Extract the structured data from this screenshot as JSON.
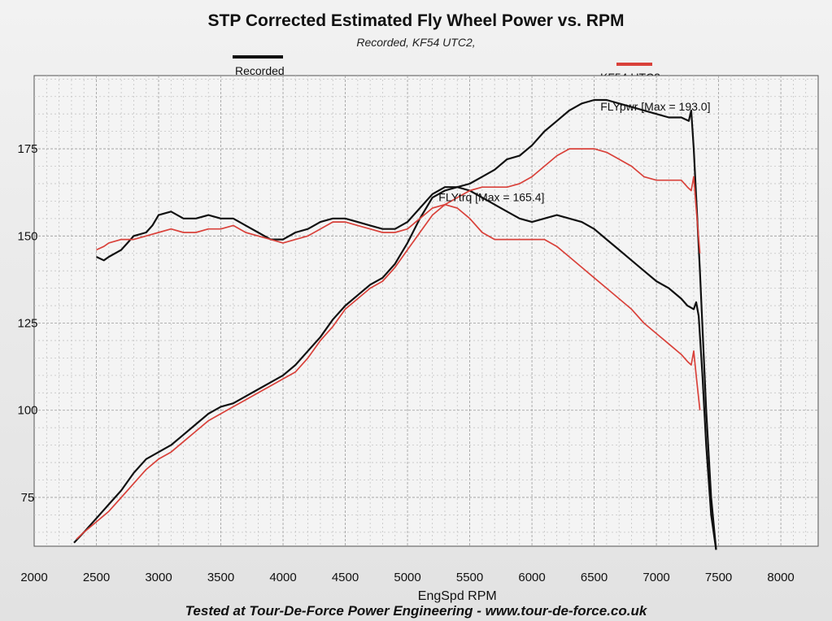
{
  "header": {
    "title": "STP Corrected Estimated Fly Wheel Power vs. RPM",
    "subtitle": "Recorded, KF54 UTC2,"
  },
  "legend": [
    {
      "label": "Recorded",
      "color": "#111111"
    },
    {
      "label": "KF54 UTC2",
      "color": "#d9413a"
    }
  ],
  "footer": "Tested at Tour-De-Force Power Engineering - www.tour-de-force.co.uk",
  "chart_data": {
    "type": "line",
    "title": "STP Corrected Estimated Fly Wheel Power vs. RPM",
    "subtitle": "Recorded, KF54 UTC2,",
    "xlabel": "EngSpd RPM",
    "ylabel": "",
    "xlim": [
      2000,
      8300
    ],
    "ylim": [
      61,
      196
    ],
    "x_ticks": [
      2000,
      2500,
      3000,
      3500,
      4000,
      4500,
      5000,
      5500,
      6000,
      6500,
      7000,
      7500,
      8000
    ],
    "y_ticks": [
      75,
      100,
      125,
      150,
      175
    ],
    "grid": true,
    "legend_position": "top",
    "annotations": [
      {
        "text": "FLYpwr [Max = 193.0]",
        "x": 6550,
        "y": 186
      },
      {
        "text": "FLYtrq [Max = 165.4]",
        "x": 5250,
        "y": 160
      }
    ],
    "series": [
      {
        "name": "Recorded",
        "metric": "FLYpwr",
        "color": "#111111",
        "points": [
          [
            2320,
            62
          ],
          [
            2400,
            65
          ],
          [
            2500,
            69
          ],
          [
            2600,
            73
          ],
          [
            2700,
            77
          ],
          [
            2800,
            82
          ],
          [
            2900,
            86
          ],
          [
            3000,
            88
          ],
          [
            3100,
            90
          ],
          [
            3200,
            93
          ],
          [
            3300,
            96
          ],
          [
            3400,
            99
          ],
          [
            3500,
            101
          ],
          [
            3600,
            102
          ],
          [
            3700,
            104
          ],
          [
            3800,
            106
          ],
          [
            3900,
            108
          ],
          [
            4000,
            110
          ],
          [
            4100,
            113
          ],
          [
            4200,
            117
          ],
          [
            4300,
            121
          ],
          [
            4400,
            126
          ],
          [
            4500,
            130
          ],
          [
            4600,
            133
          ],
          [
            4700,
            136
          ],
          [
            4800,
            138
          ],
          [
            4900,
            142
          ],
          [
            5000,
            148
          ],
          [
            5100,
            155
          ],
          [
            5200,
            161
          ],
          [
            5300,
            163
          ],
          [
            5400,
            164
          ],
          [
            5500,
            165
          ],
          [
            5600,
            167
          ],
          [
            5700,
            169
          ],
          [
            5800,
            172
          ],
          [
            5900,
            173
          ],
          [
            6000,
            176
          ],
          [
            6100,
            180
          ],
          [
            6200,
            183
          ],
          [
            6300,
            186
          ],
          [
            6400,
            188
          ],
          [
            6500,
            189
          ],
          [
            6600,
            189
          ],
          [
            6700,
            188
          ],
          [
            6800,
            187
          ],
          [
            6900,
            186
          ],
          [
            7000,
            185
          ],
          [
            7100,
            184
          ],
          [
            7200,
            184
          ],
          [
            7260,
            183
          ],
          [
            7280,
            186
          ],
          [
            7300,
            175
          ],
          [
            7350,
            140
          ],
          [
            7400,
            100
          ],
          [
            7440,
            75
          ],
          [
            7480,
            60
          ]
        ]
      },
      {
        "name": "Recorded",
        "metric": "FLYtrq",
        "color": "#111111",
        "points": [
          [
            2500,
            144
          ],
          [
            2560,
            143
          ],
          [
            2600,
            144
          ],
          [
            2700,
            146
          ],
          [
            2750,
            148
          ],
          [
            2800,
            150
          ],
          [
            2900,
            151
          ],
          [
            2950,
            153
          ],
          [
            3000,
            156
          ],
          [
            3100,
            157
          ],
          [
            3200,
            155
          ],
          [
            3300,
            155
          ],
          [
            3400,
            156
          ],
          [
            3500,
            155
          ],
          [
            3600,
            155
          ],
          [
            3700,
            153
          ],
          [
            3800,
            151
          ],
          [
            3900,
            149
          ],
          [
            4000,
            149
          ],
          [
            4100,
            151
          ],
          [
            4200,
            152
          ],
          [
            4300,
            154
          ],
          [
            4400,
            155
          ],
          [
            4500,
            155
          ],
          [
            4600,
            154
          ],
          [
            4700,
            153
          ],
          [
            4800,
            152
          ],
          [
            4900,
            152
          ],
          [
            5000,
            154
          ],
          [
            5100,
            158
          ],
          [
            5200,
            162
          ],
          [
            5300,
            164
          ],
          [
            5400,
            164
          ],
          [
            5500,
            163
          ],
          [
            5600,
            161
          ],
          [
            5700,
            159
          ],
          [
            5800,
            157
          ],
          [
            5900,
            155
          ],
          [
            6000,
            154
          ],
          [
            6100,
            155
          ],
          [
            6200,
            156
          ],
          [
            6300,
            155
          ],
          [
            6400,
            154
          ],
          [
            6500,
            152
          ],
          [
            6600,
            149
          ],
          [
            6700,
            146
          ],
          [
            6800,
            143
          ],
          [
            6900,
            140
          ],
          [
            7000,
            137
          ],
          [
            7100,
            135
          ],
          [
            7200,
            132
          ],
          [
            7250,
            130
          ],
          [
            7300,
            129
          ],
          [
            7320,
            131
          ],
          [
            7340,
            127
          ],
          [
            7370,
            110
          ],
          [
            7400,
            90
          ],
          [
            7440,
            70
          ],
          [
            7480,
            60
          ]
        ]
      },
      {
        "name": "KF54 UTC2",
        "metric": "FLYpwr",
        "color": "#d9413a",
        "points": [
          [
            2340,
            63
          ],
          [
            2400,
            65
          ],
          [
            2500,
            68
          ],
          [
            2600,
            71
          ],
          [
            2700,
            75
          ],
          [
            2800,
            79
          ],
          [
            2900,
            83
          ],
          [
            3000,
            86
          ],
          [
            3100,
            88
          ],
          [
            3200,
            91
          ],
          [
            3300,
            94
          ],
          [
            3400,
            97
          ],
          [
            3500,
            99
          ],
          [
            3600,
            101
          ],
          [
            3700,
            103
          ],
          [
            3800,
            105
          ],
          [
            3900,
            107
          ],
          [
            4000,
            109
          ],
          [
            4100,
            111
          ],
          [
            4200,
            115
          ],
          [
            4300,
            120
          ],
          [
            4400,
            124
          ],
          [
            4500,
            129
          ],
          [
            4600,
            132
          ],
          [
            4700,
            135
          ],
          [
            4800,
            137
          ],
          [
            4900,
            141
          ],
          [
            5000,
            146
          ],
          [
            5100,
            151
          ],
          [
            5200,
            156
          ],
          [
            5300,
            159
          ],
          [
            5400,
            161
          ],
          [
            5500,
            163
          ],
          [
            5600,
            164
          ],
          [
            5700,
            164
          ],
          [
            5800,
            164
          ],
          [
            5900,
            165
          ],
          [
            6000,
            167
          ],
          [
            6100,
            170
          ],
          [
            6200,
            173
          ],
          [
            6300,
            175
          ],
          [
            6400,
            175
          ],
          [
            6500,
            175
          ],
          [
            6600,
            174
          ],
          [
            6700,
            172
          ],
          [
            6800,
            170
          ],
          [
            6900,
            167
          ],
          [
            7000,
            166
          ],
          [
            7100,
            166
          ],
          [
            7200,
            166
          ],
          [
            7250,
            164
          ],
          [
            7280,
            163
          ],
          [
            7300,
            167
          ],
          [
            7320,
            158
          ],
          [
            7350,
            145
          ]
        ]
      },
      {
        "name": "KF54 UTC2",
        "metric": "FLYtrq",
        "color": "#d9413a",
        "points": [
          [
            2500,
            146
          ],
          [
            2560,
            147
          ],
          [
            2600,
            148
          ],
          [
            2700,
            149
          ],
          [
            2800,
            149
          ],
          [
            2900,
            150
          ],
          [
            3000,
            151
          ],
          [
            3100,
            152
          ],
          [
            3200,
            151
          ],
          [
            3300,
            151
          ],
          [
            3400,
            152
          ],
          [
            3500,
            152
          ],
          [
            3600,
            153
          ],
          [
            3700,
            151
          ],
          [
            3800,
            150
          ],
          [
            3900,
            149
          ],
          [
            4000,
            148
          ],
          [
            4100,
            149
          ],
          [
            4200,
            150
          ],
          [
            4300,
            152
          ],
          [
            4400,
            154
          ],
          [
            4500,
            154
          ],
          [
            4600,
            153
          ],
          [
            4700,
            152
          ],
          [
            4800,
            151
          ],
          [
            4900,
            151
          ],
          [
            5000,
            152
          ],
          [
            5100,
            155
          ],
          [
            5200,
            158
          ],
          [
            5300,
            159
          ],
          [
            5400,
            158
          ],
          [
            5500,
            155
          ],
          [
            5600,
            151
          ],
          [
            5700,
            149
          ],
          [
            5800,
            149
          ],
          [
            5900,
            149
          ],
          [
            6000,
            149
          ],
          [
            6100,
            149
          ],
          [
            6200,
            147
          ],
          [
            6300,
            144
          ],
          [
            6400,
            141
          ],
          [
            6500,
            138
          ],
          [
            6600,
            135
          ],
          [
            6700,
            132
          ],
          [
            6800,
            129
          ],
          [
            6900,
            125
          ],
          [
            7000,
            122
          ],
          [
            7100,
            119
          ],
          [
            7200,
            116
          ],
          [
            7250,
            114
          ],
          [
            7280,
            113
          ],
          [
            7300,
            117
          ],
          [
            7320,
            110
          ],
          [
            7350,
            100
          ]
        ]
      }
    ]
  }
}
